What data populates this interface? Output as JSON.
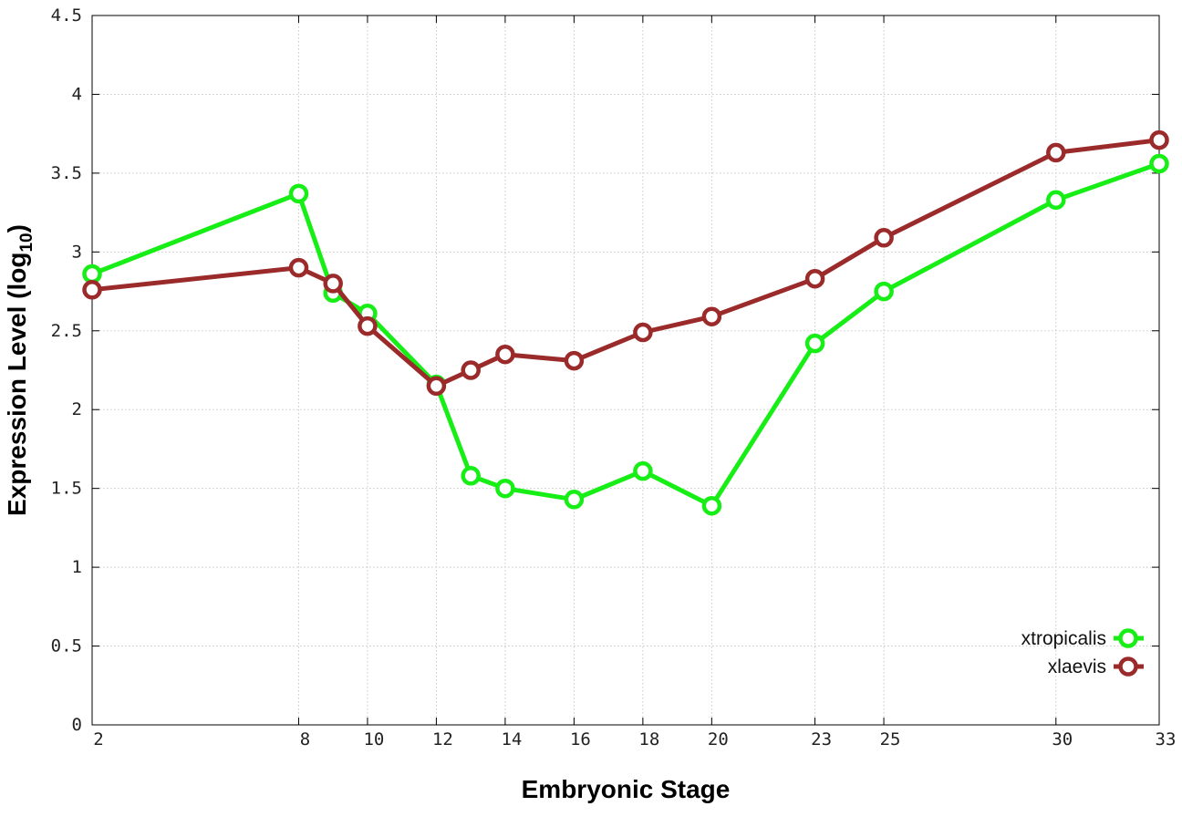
{
  "chart_data": {
    "type": "line",
    "title": "",
    "xlabel": "Embryonic Stage",
    "ylabel": "Expression Level (log",
    "ylabel_sub": "10",
    "ylabel_close": ")",
    "xlim": [
      2,
      33
    ],
    "ylim": [
      0,
      4.5
    ],
    "x_ticks": [
      2,
      8,
      10,
      12,
      14,
      16,
      18,
      20,
      23,
      25,
      30,
      33
    ],
    "y_ticks": [
      0,
      0.5,
      1,
      1.5,
      2,
      2.5,
      3,
      3.5,
      4,
      4.5
    ],
    "y_tick_labels": [
      "0",
      "0.5",
      "1",
      "1.5",
      "2",
      "2.5",
      "3",
      "3.5",
      "4",
      "4.5"
    ],
    "grid": true,
    "legend_position": "bottom-right",
    "x": [
      2,
      8,
      9,
      10,
      12,
      13,
      14,
      16,
      18,
      20,
      23,
      25,
      30,
      33
    ],
    "series": [
      {
        "name": "xtropicalis",
        "color": "#16ee16",
        "values": [
          2.86,
          3.37,
          2.74,
          2.61,
          2.16,
          1.58,
          1.5,
          1.43,
          1.61,
          1.39,
          2.42,
          2.75,
          3.33,
          3.56
        ]
      },
      {
        "name": "xlaevis",
        "color": "#9b2a2a",
        "values": [
          2.76,
          2.9,
          2.8,
          2.53,
          2.15,
          2.25,
          2.35,
          2.31,
          2.49,
          2.59,
          2.83,
          3.09,
          3.63,
          3.71
        ]
      }
    ]
  }
}
